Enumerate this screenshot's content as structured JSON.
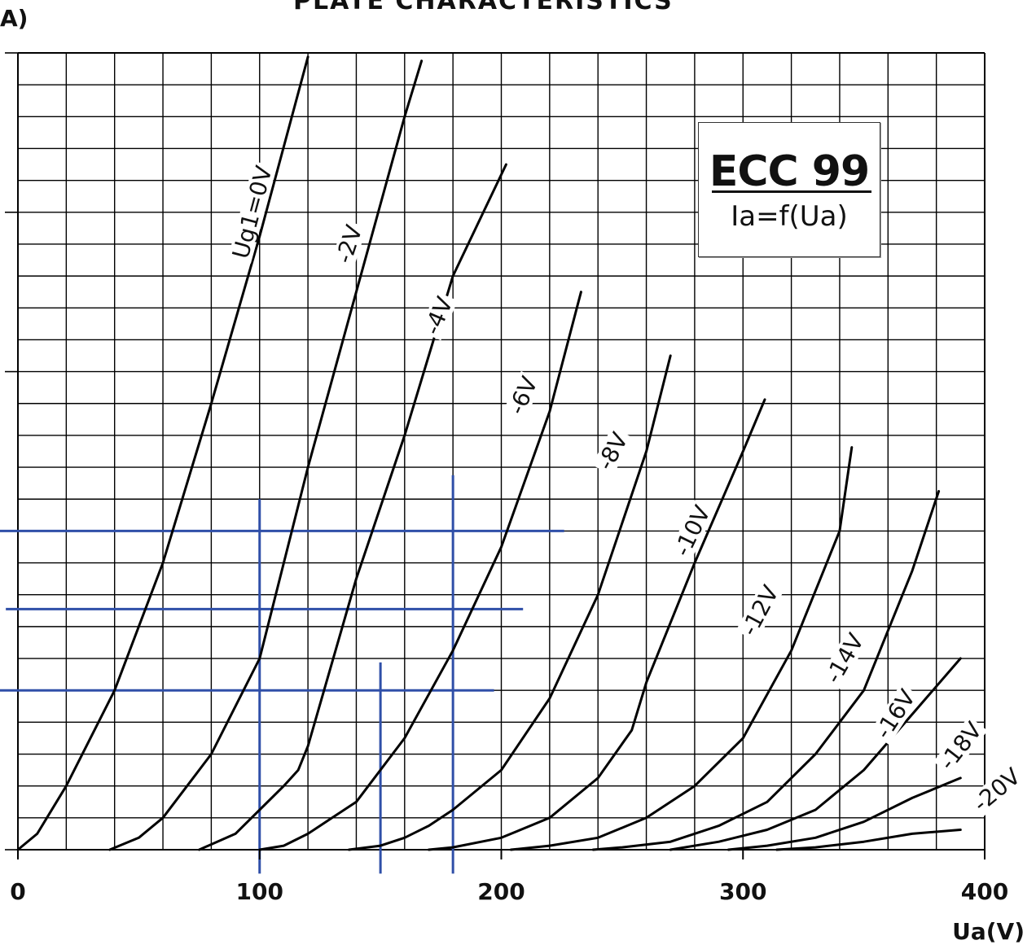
{
  "chart_data": {
    "type": "line",
    "title": "PLATE CHARACTERISTICS",
    "panel_label": "A)",
    "legend": {
      "tube": "ECC 99",
      "function": "Ia=f(Ua)"
    },
    "xlabel": "Ua(V)",
    "ylabel": "",
    "xlim": [
      0,
      400
    ],
    "ylim": [
      0,
      100
    ],
    "x_ticks": [
      "0",
      "100",
      "200",
      "300",
      "400"
    ],
    "grid": true,
    "series": [
      {
        "name": "Ug1=0V",
        "x": [
          0,
          8,
          20,
          40,
          60,
          80,
          100,
          120
        ],
        "y": [
          0,
          2,
          8,
          20,
          36,
          56,
          77,
          99.5
        ]
      },
      {
        "name": "-2V",
        "x": [
          38,
          50,
          60,
          70,
          80,
          100,
          120,
          140,
          160,
          167
        ],
        "y": [
          0,
          1.5,
          4,
          8,
          12,
          24,
          48,
          70,
          92,
          99
        ]
      },
      {
        "name": "-4V",
        "x": [
          75,
          90,
          100,
          110,
          116,
          120,
          140,
          160,
          180,
          202
        ],
        "y": [
          0,
          2,
          5,
          8,
          10,
          13,
          34,
          52,
          72,
          86
        ]
      },
      {
        "name": "-6V",
        "x": [
          100,
          110,
          120,
          130,
          140,
          160,
          180,
          200,
          220,
          233
        ],
        "y": [
          0,
          0.5,
          2,
          4,
          6,
          14,
          25,
          38,
          55,
          70
        ]
      },
      {
        "name": "-8V",
        "x": [
          137,
          150,
          160,
          170,
          180,
          200,
          220,
          240,
          260,
          270
        ],
        "y": [
          0,
          0.5,
          1.5,
          3,
          5,
          10,
          19,
          32,
          50,
          62
        ]
      },
      {
        "name": "-10V",
        "x": [
          170,
          180,
          200,
          220,
          240,
          254,
          260,
          280,
          300,
          309
        ],
        "y": [
          0,
          0.3,
          1.5,
          4,
          9,
          15,
          21,
          36,
          50,
          56.5
        ]
      },
      {
        "name": "-12V",
        "x": [
          204,
          220,
          240,
          260,
          280,
          300,
          320,
          340,
          345
        ],
        "y": [
          0,
          0.5,
          1.5,
          4,
          8,
          14,
          25,
          40,
          50.5
        ]
      },
      {
        "name": "-14V",
        "x": [
          238,
          250,
          270,
          290,
          310,
          330,
          350,
          370,
          381
        ],
        "y": [
          0,
          0.3,
          1,
          3,
          6,
          12,
          20,
          35,
          45
        ]
      },
      {
        "name": "-16V",
        "x": [
          270,
          290,
          310,
          330,
          350,
          370,
          390
        ],
        "y": [
          0,
          1,
          2.5,
          5,
          10,
          17,
          24
        ]
      },
      {
        "name": "-18V",
        "x": [
          294,
          310,
          330,
          350,
          370,
          390
        ],
        "y": [
          0,
          0.5,
          1.5,
          3.5,
          6.5,
          9
        ]
      },
      {
        "name": "-20V",
        "x": [
          314,
          330,
          350,
          370,
          390
        ],
        "y": [
          0,
          0.3,
          1,
          2,
          2.5
        ]
      }
    ],
    "annotation_lines": {
      "color": "#2f4fa8",
      "horizontal": [
        {
          "y": 40,
          "x": [
            -10,
            226
          ]
        },
        {
          "y": 30.2,
          "x": [
            -5,
            209
          ]
        },
        {
          "y": 20,
          "x": [
            -8,
            197
          ]
        }
      ],
      "vertical": [
        {
          "x": 100,
          "y": [
            -3,
            44
          ]
        },
        {
          "x": 150,
          "y": [
            -3,
            23.5
          ]
        },
        {
          "x": 180,
          "y": [
            -3,
            47
          ]
        }
      ]
    }
  }
}
